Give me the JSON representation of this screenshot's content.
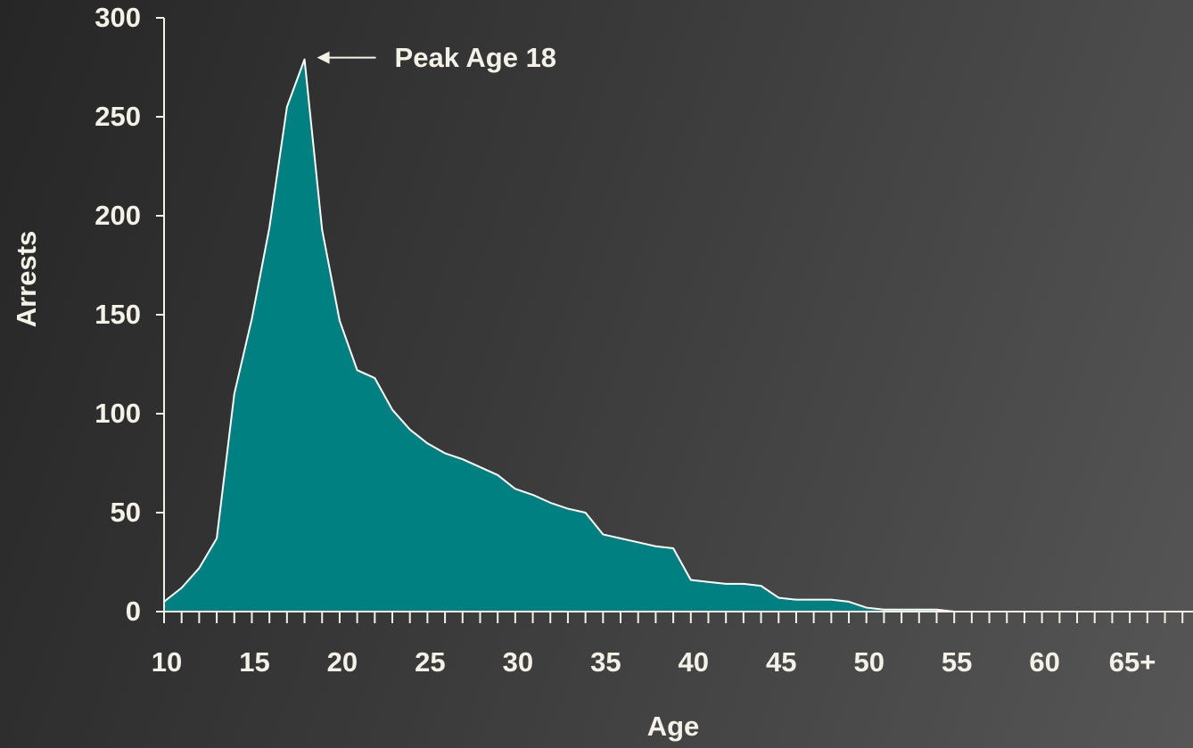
{
  "chart_data": {
    "type": "area",
    "x_label": "Age",
    "y_label": "Arrests",
    "x": [
      10,
      11,
      12,
      13,
      14,
      15,
      16,
      17,
      18,
      19,
      20,
      21,
      22,
      23,
      24,
      25,
      26,
      27,
      28,
      29,
      30,
      31,
      32,
      33,
      34,
      35,
      36,
      37,
      38,
      39,
      40,
      41,
      42,
      43,
      44,
      45,
      46,
      47,
      48,
      49,
      50,
      51,
      52,
      53,
      54,
      55,
      56,
      57,
      58,
      59,
      60,
      61,
      62,
      63,
      64,
      65,
      66,
      67,
      68
    ],
    "values": [
      5,
      12,
      22,
      37,
      110,
      148,
      194,
      255,
      279,
      193,
      147,
      122,
      118,
      102,
      92,
      85,
      80,
      77,
      73,
      69,
      62,
      59,
      55,
      52,
      50,
      39,
      37,
      35,
      33,
      32,
      16,
      15,
      14,
      14,
      13,
      7,
      6,
      6,
      6,
      5,
      2,
      1,
      1,
      1,
      1,
      0,
      0,
      0,
      0,
      0,
      0,
      0,
      0,
      0,
      0,
      0,
      0,
      0,
      0
    ],
    "color": "#008080",
    "xlim": [
      10,
      68.6
    ],
    "ylim": [
      0,
      300
    ],
    "xticks": [
      10,
      15,
      20,
      25,
      30,
      35,
      40,
      45,
      50,
      55,
      60,
      {
        "value": 65,
        "label": "65+"
      }
    ],
    "minor_xticks": [
      10,
      11,
      12,
      13,
      14,
      15,
      16,
      17,
      18,
      19,
      20,
      21,
      22,
      23,
      24,
      25,
      26,
      27,
      28,
      29,
      30,
      31,
      32,
      33,
      34,
      35,
      36,
      37,
      38,
      39,
      40,
      41,
      42,
      43,
      44,
      45,
      46,
      47,
      48,
      49,
      50,
      51,
      52,
      53,
      54,
      55,
      56,
      57,
      58,
      59,
      60,
      61,
      62,
      63,
      64,
      65,
      66,
      67,
      68
    ],
    "yticks": [
      0,
      50,
      100,
      150,
      200,
      250,
      300
    ],
    "annotations": [
      {
        "text": "Peak Age 18",
        "x": 18,
        "y": 279
      }
    ]
  }
}
